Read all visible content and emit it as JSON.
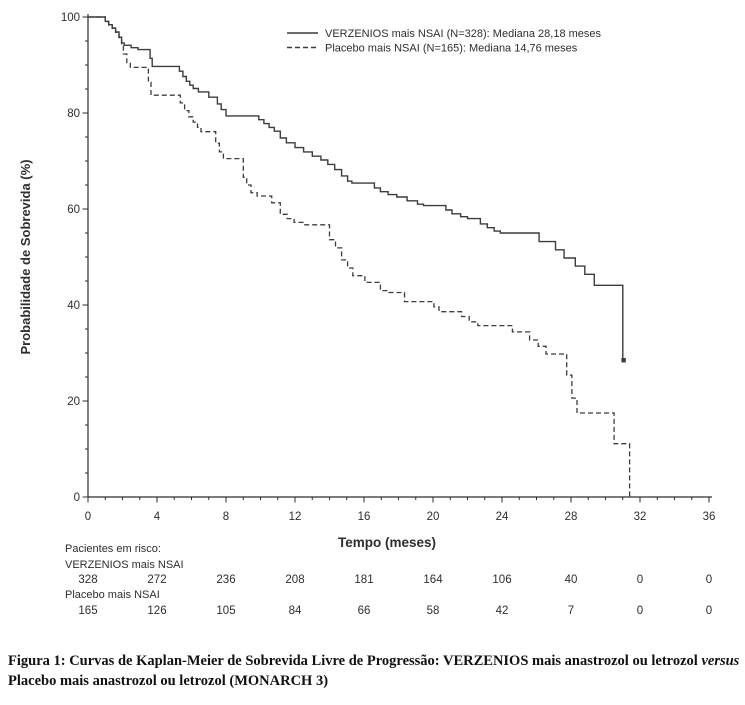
{
  "chart_data": {
    "type": "line",
    "step": true,
    "title": "",
    "xlabel": "Tempo (meses)",
    "ylabel": "Probabilidade de Sobrevida (%)",
    "xlim": [
      0,
      36
    ],
    "ylim": [
      0,
      100
    ],
    "x_major_ticks": [
      0,
      4,
      8,
      12,
      16,
      20,
      24,
      28,
      32,
      36
    ],
    "x_minor_step": 1,
    "y_major_ticks": [
      0,
      20,
      40,
      60,
      80,
      100
    ],
    "y_minor_step": 5,
    "grid": false,
    "legend_position": "top-center",
    "series": [
      {
        "name": "VERZENIOS mais NSAI (N=328): Mediana 28,18 meses",
        "style": "solid",
        "median_months": "28,18",
        "n": 328,
        "end_marker": [
          31.05,
          28.5
        ],
        "points": [
          [
            0,
            100
          ],
          [
            0.9,
            100
          ],
          [
            1.0,
            99.1
          ],
          [
            1.2,
            98.4
          ],
          [
            1.4,
            97.7
          ],
          [
            1.6,
            96.9
          ],
          [
            1.8,
            95.8
          ],
          [
            1.95,
            94.6
          ],
          [
            2.1,
            94.1
          ],
          [
            2.5,
            93.6
          ],
          [
            2.9,
            93.2
          ],
          [
            3.6,
            91.4
          ],
          [
            3.72,
            89.7
          ],
          [
            5.3,
            88.7
          ],
          [
            5.5,
            87.6
          ],
          [
            5.7,
            86.6
          ],
          [
            5.9,
            85.8
          ],
          [
            6.1,
            85.1
          ],
          [
            6.4,
            84.4
          ],
          [
            7.0,
            83.3
          ],
          [
            7.5,
            81.9
          ],
          [
            7.72,
            80.7
          ],
          [
            8.0,
            79.4
          ],
          [
            9.9,
            78.6
          ],
          [
            10.2,
            77.8
          ],
          [
            10.5,
            77.0
          ],
          [
            10.8,
            76.2
          ],
          [
            11.15,
            74.8
          ],
          [
            11.5,
            73.8
          ],
          [
            12.0,
            72.8
          ],
          [
            12.5,
            71.9
          ],
          [
            13.0,
            71.0
          ],
          [
            13.5,
            70.2
          ],
          [
            13.9,
            69.3
          ],
          [
            14.3,
            68.2
          ],
          [
            14.7,
            66.9
          ],
          [
            15.05,
            65.8
          ],
          [
            15.3,
            65.4
          ],
          [
            16.6,
            64.4
          ],
          [
            16.95,
            63.6
          ],
          [
            17.4,
            63.0
          ],
          [
            17.9,
            62.5
          ],
          [
            18.5,
            61.7
          ],
          [
            19.1,
            61.0
          ],
          [
            19.45,
            60.7
          ],
          [
            20.75,
            59.8
          ],
          [
            21.1,
            59.0
          ],
          [
            21.6,
            58.4
          ],
          [
            22.0,
            58.0
          ],
          [
            22.75,
            56.9
          ],
          [
            23.15,
            56.1
          ],
          [
            23.55,
            55.4
          ],
          [
            23.9,
            55.0
          ],
          [
            26.15,
            53.2
          ],
          [
            27.1,
            51.5
          ],
          [
            27.6,
            49.8
          ],
          [
            28.25,
            48.1
          ],
          [
            28.8,
            46.4
          ],
          [
            29.35,
            44.1
          ],
          [
            31.0,
            28.5
          ],
          [
            31.15,
            28.5
          ]
        ]
      },
      {
        "name": "Placebo mais NSAI (N=165): Mediana 14,76 meses",
        "style": "dashed",
        "median_months": "14,76",
        "n": 165,
        "points": [
          [
            0,
            100
          ],
          [
            0.9,
            100
          ],
          [
            1.0,
            99.0
          ],
          [
            1.2,
            98.3
          ],
          [
            1.4,
            97.6
          ],
          [
            1.6,
            96.8
          ],
          [
            1.8,
            95.7
          ],
          [
            1.95,
            94.4
          ],
          [
            2.05,
            92.3
          ],
          [
            2.25,
            90.5
          ],
          [
            2.45,
            89.5
          ],
          [
            3.5,
            86.4
          ],
          [
            3.65,
            83.7
          ],
          [
            5.35,
            82.1
          ],
          [
            5.6,
            80.5
          ],
          [
            5.85,
            79.2
          ],
          [
            6.1,
            78.1
          ],
          [
            6.35,
            77.0
          ],
          [
            6.55,
            76.1
          ],
          [
            7.4,
            73.7
          ],
          [
            7.62,
            71.9
          ],
          [
            7.85,
            70.5
          ],
          [
            9.0,
            66.6
          ],
          [
            9.2,
            65.0
          ],
          [
            9.45,
            63.4
          ],
          [
            9.8,
            62.7
          ],
          [
            10.65,
            61.3
          ],
          [
            11.15,
            58.9
          ],
          [
            11.55,
            58.0
          ],
          [
            11.95,
            57.2
          ],
          [
            12.5,
            56.7
          ],
          [
            14.0,
            53.6
          ],
          [
            14.35,
            51.9
          ],
          [
            14.7,
            49.4
          ],
          [
            15.05,
            47.7
          ],
          [
            15.35,
            46.1
          ],
          [
            16.05,
            44.7
          ],
          [
            16.95,
            43.0
          ],
          [
            17.45,
            42.6
          ],
          [
            18.35,
            40.7
          ],
          [
            20.05,
            39.6
          ],
          [
            20.35,
            38.6
          ],
          [
            21.65,
            37.6
          ],
          [
            22.1,
            36.5
          ],
          [
            22.6,
            35.7
          ],
          [
            24.6,
            34.4
          ],
          [
            25.6,
            32.7
          ],
          [
            26.1,
            31.4
          ],
          [
            26.55,
            29.8
          ],
          [
            27.75,
            25.4
          ],
          [
            28.05,
            20.6
          ],
          [
            28.35,
            17.5
          ],
          [
            30.5,
            11.1
          ],
          [
            31.4,
            0.3
          ],
          [
            31.5,
            0.3
          ]
        ]
      }
    ],
    "at_risk": {
      "header": "Pacientes em risco:",
      "times": [
        0,
        4,
        8,
        12,
        16,
        20,
        24,
        28,
        32,
        36
      ],
      "rows": [
        {
          "label": "VERZENIOS mais NSAI",
          "values": [
            328,
            272,
            236,
            208,
            181,
            164,
            106,
            40,
            0,
            0
          ]
        },
        {
          "label": "Placebo mais NSAI",
          "values": [
            165,
            126,
            105,
            84,
            66,
            58,
            42,
            7,
            0,
            0
          ]
        }
      ]
    }
  },
  "caption": {
    "part1": "Figura 1: Curvas de Kaplan-Meier de Sobrevida Livre de Progressão: VERZENIOS mais anastrozol ou letrozol ",
    "italic": "versus",
    "part2": " Placebo mais anastrozol ou letrozol (MONARCH 3)"
  },
  "colors": {
    "ink": "#2e2e2e",
    "curve": "#3c3c3c",
    "background": "#ffffff"
  }
}
